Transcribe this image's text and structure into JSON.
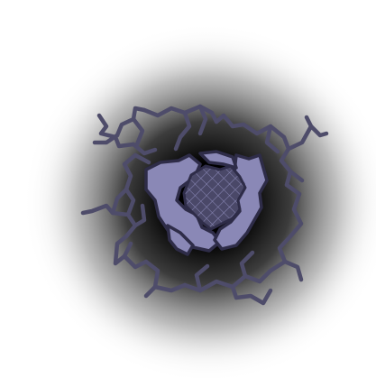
{
  "sprite": {
    "name": "cracked-wall-hole",
    "colors": {
      "background": "#ffffff",
      "shadow_core": "#000000",
      "crack_stroke": "#4e4c6a",
      "rubble_fill": "#8a88b6",
      "rubble_outline": "#2e2c48",
      "mesh_fill": "#4a4868",
      "mesh_line": "#8a88b6"
    }
  }
}
